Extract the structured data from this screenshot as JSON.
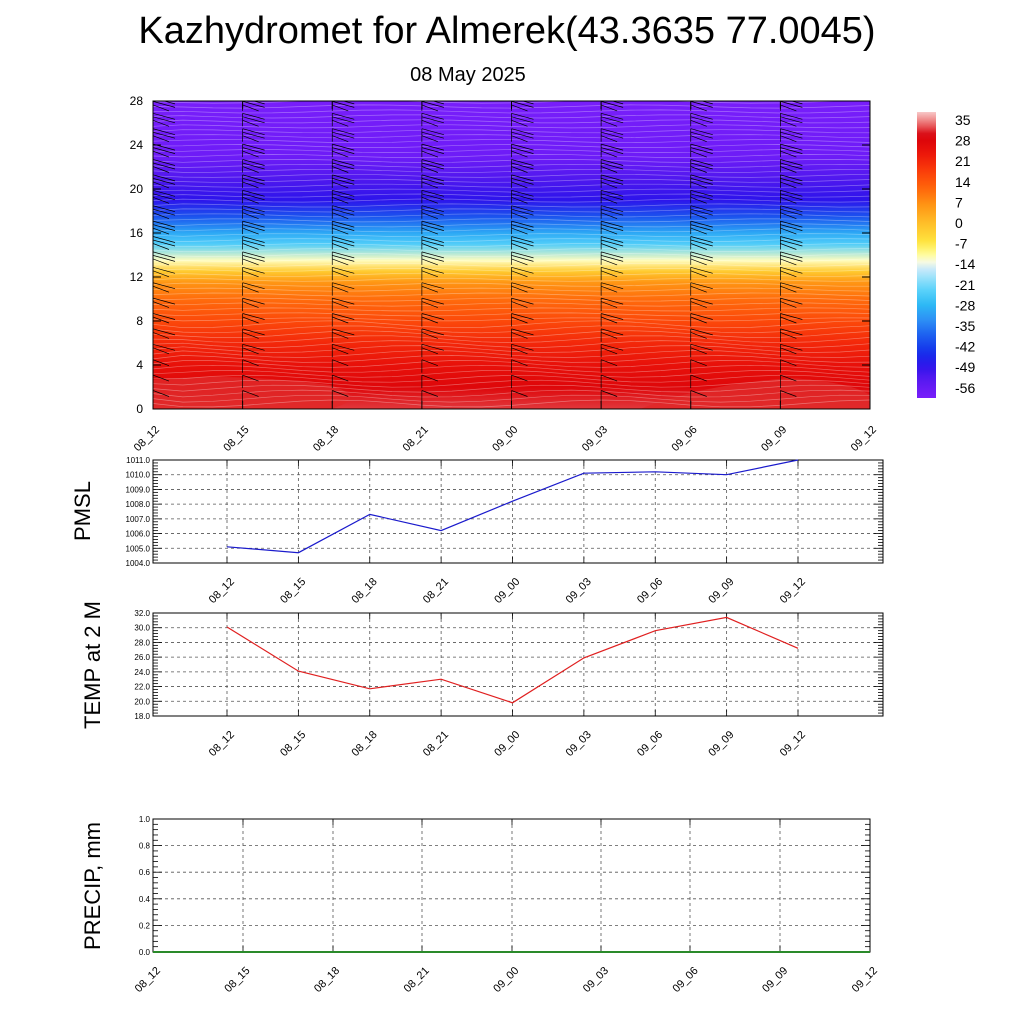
{
  "title": "Kazhydromet for Almerek(43.3635 77.0045)",
  "subtitle": "08 May 2025",
  "time_labels": [
    "08_12",
    "08_15",
    "08_18",
    "08_21",
    "09_00",
    "09_03",
    "09_06",
    "09_09",
    "09_12"
  ],
  "chart_data": [
    {
      "type": "heatmap",
      "y_ticks": [
        0,
        4,
        8,
        12,
        16,
        20,
        24,
        28
      ],
      "ylim": [
        0,
        28
      ],
      "colorbar_labels": [
        "35",
        "28",
        "21",
        "14",
        "7",
        "0",
        "-7",
        "-14",
        "-21",
        "-28",
        "-35",
        "-42",
        "-49",
        "-56"
      ],
      "colorbar_range": [
        -60,
        38
      ],
      "profile": [
        [
          0,
          32
        ],
        [
          2,
          28
        ],
        [
          4,
          25
        ],
        [
          6,
          21
        ],
        [
          8,
          16
        ],
        [
          10,
          11
        ],
        [
          11.5,
          6
        ],
        [
          12.5,
          -2
        ],
        [
          13.5,
          -12
        ],
        [
          15,
          -24
        ],
        [
          16,
          -30
        ],
        [
          17.5,
          -40
        ],
        [
          19,
          -49
        ],
        [
          21,
          -53
        ],
        [
          23,
          -58
        ],
        [
          28,
          -60
        ]
      ],
      "wind_barbs": true
    },
    {
      "type": "line",
      "ylabel": "PMSL",
      "y_ticks": [
        "1004.0",
        "1005.0",
        "1006.0",
        "1007.0",
        "1008.0",
        "1009.0",
        "1010.0",
        "1011.0"
      ],
      "ylim": [
        1004,
        1011
      ],
      "x": [
        "08_12",
        "08_15",
        "08_18",
        "08_21",
        "09_00",
        "09_03",
        "09_06",
        "09_09",
        "09_12"
      ],
      "values": [
        1005.1,
        1004.7,
        1007.3,
        1006.2,
        1008.2,
        1010.1,
        1010.2,
        1010.0,
        1011.0
      ],
      "color": "#1a1acc"
    },
    {
      "type": "line",
      "ylabel": "TEMP at 2 M",
      "y_ticks": [
        "18.0",
        "20.0",
        "22.0",
        "24.0",
        "26.0",
        "28.0",
        "30.0",
        "32.0"
      ],
      "ylim": [
        18,
        32
      ],
      "x": [
        "08_12",
        "08_15",
        "08_18",
        "08_21",
        "09_00",
        "09_03",
        "09_06",
        "09_09",
        "09_12"
      ],
      "values": [
        30.1,
        24.1,
        21.7,
        23.0,
        19.8,
        25.9,
        29.6,
        31.4,
        27.2
      ],
      "color": "#e02020"
    },
    {
      "type": "line",
      "ylabel": "PRECIP, mm",
      "y_ticks": [
        "0.0",
        "0.2",
        "0.4",
        "0.6",
        "0.8",
        "1.0"
      ],
      "ylim": [
        0,
        1
      ],
      "values": [
        0,
        0,
        0,
        0,
        0,
        0,
        0,
        0,
        0
      ],
      "color": "#2a8a2a"
    }
  ]
}
